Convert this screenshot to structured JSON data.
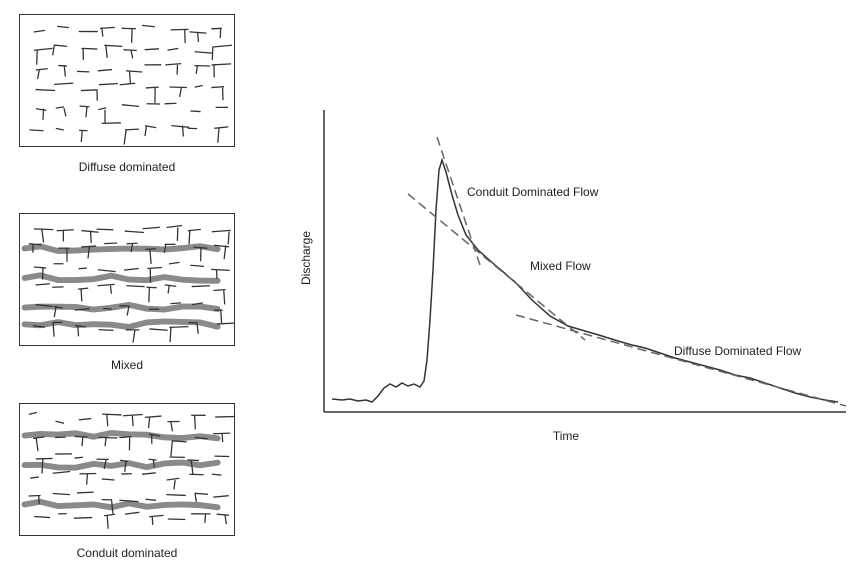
{
  "panels": [
    {
      "caption": "Diffuse dominated",
      "conduits": 0
    },
    {
      "caption": "Mixed",
      "conduits": 6
    },
    {
      "caption": "Conduit dominated",
      "conduits": 4
    }
  ],
  "hydrograph": {
    "y_axis_label": "Discharge",
    "x_axis_label": "Time",
    "segment_labels": {
      "conduit": "Conduit Dominated Flow",
      "mixed": "Mixed Flow",
      "diffuse": "Diffuse Dominated Flow"
    }
  },
  "colors": {
    "line": "#333333",
    "conduit_fill": "#8a8a8a",
    "dash": "#666666"
  }
}
